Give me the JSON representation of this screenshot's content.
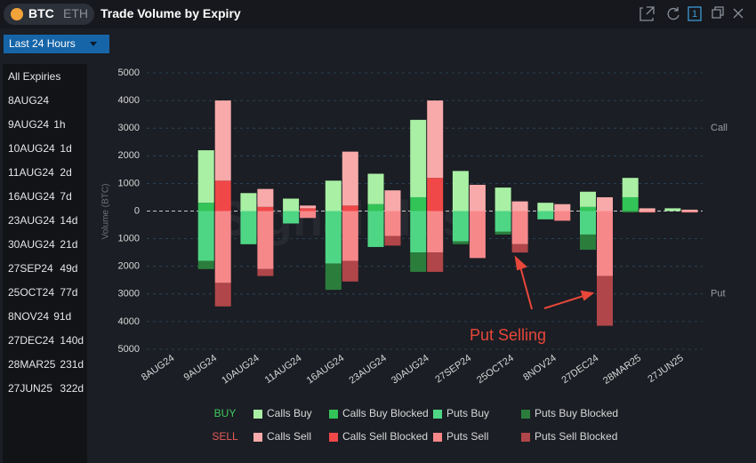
{
  "header": {
    "coin_active": "BTC",
    "coin_other": "ETH",
    "title": "Trade Volume by Expiry",
    "window_count": "1"
  },
  "dropdown": {
    "label": "Last 24 Hours"
  },
  "sidebar": {
    "all": "All Expiries",
    "items": [
      {
        "expiry": "8AUG24",
        "age": ""
      },
      {
        "expiry": "9AUG24",
        "age": "1h"
      },
      {
        "expiry": "10AUG24",
        "age": "1d"
      },
      {
        "expiry": "11AUG24",
        "age": "2d"
      },
      {
        "expiry": "16AUG24",
        "age": "7d"
      },
      {
        "expiry": "23AUG24",
        "age": "14d"
      },
      {
        "expiry": "30AUG24",
        "age": "21d"
      },
      {
        "expiry": "27SEP24",
        "age": "49d"
      },
      {
        "expiry": "25OCT24",
        "age": "77d"
      },
      {
        "expiry": "8NOV24",
        "age": "91d"
      },
      {
        "expiry": "27DEC24",
        "age": "140d"
      },
      {
        "expiry": "28MAR25",
        "age": "231d"
      },
      {
        "expiry": "27JUN25",
        "age": "322d"
      }
    ]
  },
  "chart_data": {
    "type": "bar",
    "ylabel": "Volume (BTC)",
    "watermark": "SignalPlus",
    "call_label": "Call",
    "put_label": "Put",
    "annotation": "Put Selling",
    "categories": [
      "8AUG24",
      "9AUG24",
      "10AUG24",
      "11AUG24",
      "16AUG24",
      "23AUG24",
      "30AUG24",
      "27SEP24",
      "25OCT24",
      "8NOV24",
      "27DEC24",
      "28MAR25",
      "27JUN25"
    ],
    "ylim": [
      -5000,
      5000
    ],
    "yticks": [
      5000,
      4000,
      3000,
      2000,
      1000,
      0,
      {
        "value": -1000,
        "label": "1000"
      },
      {
        "value": -2000,
        "label": "2000"
      },
      {
        "value": -3000,
        "label": "3000"
      },
      {
        "value": -4000,
        "label": "4000"
      },
      {
        "value": -5000,
        "label": "5000"
      }
    ],
    "grid": true,
    "groups": [
      {
        "name": "BUY",
        "color": "#3fc85e",
        "series": [
          {
            "name": "Calls Buy",
            "color": "#a9f0a4",
            "values": [
              0,
              1900,
              650,
              450,
              1100,
              1100,
              2800,
              1450,
              850,
              300,
              550,
              700,
              100
            ]
          },
          {
            "name": "Calls Buy Blocked",
            "color": "#33c457",
            "values": [
              0,
              300,
              0,
              0,
              0,
              250,
              500,
              0,
              0,
              0,
              150,
              500,
              0
            ]
          },
          {
            "name": "Puts Buy",
            "color": "#4fd685",
            "values": [
              0,
              -1800,
              -1200,
              -450,
              -1900,
              -1300,
              -1500,
              -1100,
              -750,
              -300,
              -850,
              0,
              0
            ]
          },
          {
            "name": "Puts Buy Blocked",
            "color": "#2b7d3c",
            "values": [
              0,
              -300,
              0,
              0,
              -950,
              0,
              -700,
              -100,
              -100,
              0,
              -550,
              -50,
              0
            ]
          }
        ]
      },
      {
        "name": "SELL",
        "color": "#e85a5a",
        "series": [
          {
            "name": "Calls Sell",
            "color": "#f8aaaa",
            "values": [
              0,
              2900,
              650,
              100,
              1950,
              750,
              2800,
              950,
              350,
              250,
              500,
              100,
              50
            ]
          },
          {
            "name": "Calls Sell Blocked",
            "color": "#f04848",
            "values": [
              0,
              1100,
              150,
              100,
              200,
              0,
              1200,
              0,
              0,
              0,
              0,
              0,
              0
            ]
          },
          {
            "name": "Puts Sell",
            "color": "#f7888a",
            "values": [
              0,
              -2600,
              -2100,
              -250,
              -1800,
              -900,
              -1500,
              -1700,
              -1200,
              -350,
              -2350,
              -50,
              -50
            ]
          },
          {
            "name": "Puts Sell Blocked",
            "color": "#b04649",
            "values": [
              0,
              -850,
              -250,
              0,
              -750,
              -350,
              -700,
              0,
              -300,
              0,
              -1800,
              0,
              0
            ]
          }
        ]
      }
    ]
  }
}
